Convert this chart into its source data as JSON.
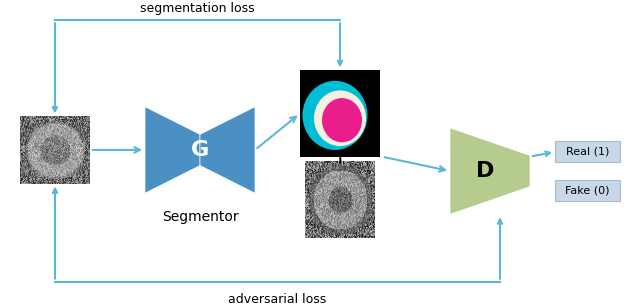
{
  "bg_color": "#ffffff",
  "arrow_color": "#5bb8d4",
  "segmentation_loss_text": "segmentation loss",
  "adversarial_loss_text": "adversarial loss",
  "segmentor_text": "Segmentor",
  "G_text": "G",
  "D_text": "D",
  "real_text": "Real (1)",
  "fake_text": "Fake (0)",
  "plus_text": "+",
  "G_color": "#4a90c4",
  "D_color": "#b5cc8e",
  "real_box_color": "#c8d8e8",
  "fake_box_color": "#c8d8e8",
  "connector_lw": 1.5,
  "text_fontsize": 9,
  "label_fontsize": 10,
  "GD_label_fontsize": 16
}
